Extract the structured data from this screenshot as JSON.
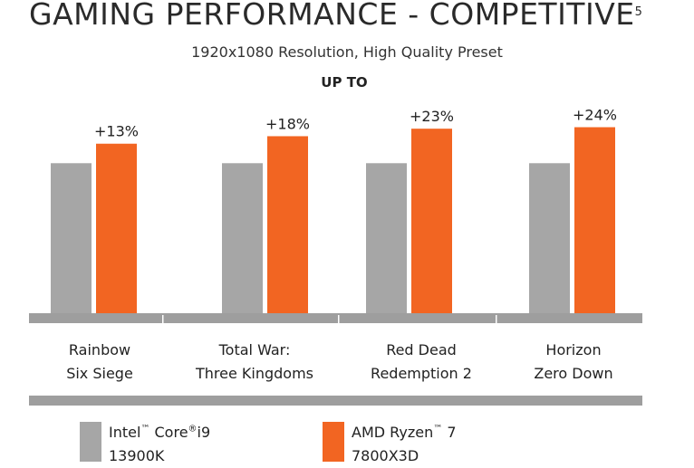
{
  "page": {
    "title": "GAMING PERFORMANCE - COMPETITIVE",
    "title_footnote": "5",
    "subtitle": "1920x1080 Resolution, High Quality Preset",
    "note": "UP TO"
  },
  "colors": {
    "intel": "#a6a6a6",
    "amd": "#f26522",
    "axis": "#9e9e9e"
  },
  "chart_data": {
    "type": "bar",
    "categories": [
      "Rainbow Six Siege",
      "Total War: Three Kingdoms",
      "Red Dead Redemption 2",
      "Horizon Zero Down"
    ],
    "category_lines": [
      [
        "Rainbow",
        "Six Siege"
      ],
      [
        "Total War:",
        "Three Kingdoms"
      ],
      [
        "Red Dead",
        "Redemption 2"
      ],
      [
        "Horizon",
        "Zero Down"
      ]
    ],
    "series": [
      {
        "name": "Intel™ Core®i9 13900K",
        "values": [
          100,
          100,
          100,
          100
        ]
      },
      {
        "name": "AMD Ryzen™ 7 7800X3D",
        "values": [
          113,
          118,
          123,
          124
        ]
      }
    ],
    "data_labels": [
      "+13%",
      "+18%",
      "+23%",
      "+24%"
    ],
    "ylim": [
      0,
      140
    ],
    "grid": false,
    "legend_position": "bottom-left"
  },
  "legend": [
    {
      "line1": "Intel",
      "tm1": "™",
      "line1b": " Core",
      "tm2": "®",
      "line1c": "i9",
      "line2": "13900K"
    },
    {
      "line1": "AMD Ryzen",
      "tm1": "™",
      "line1b": " 7",
      "tm2": "",
      "line1c": "",
      "line2": "7800X3D"
    }
  ]
}
